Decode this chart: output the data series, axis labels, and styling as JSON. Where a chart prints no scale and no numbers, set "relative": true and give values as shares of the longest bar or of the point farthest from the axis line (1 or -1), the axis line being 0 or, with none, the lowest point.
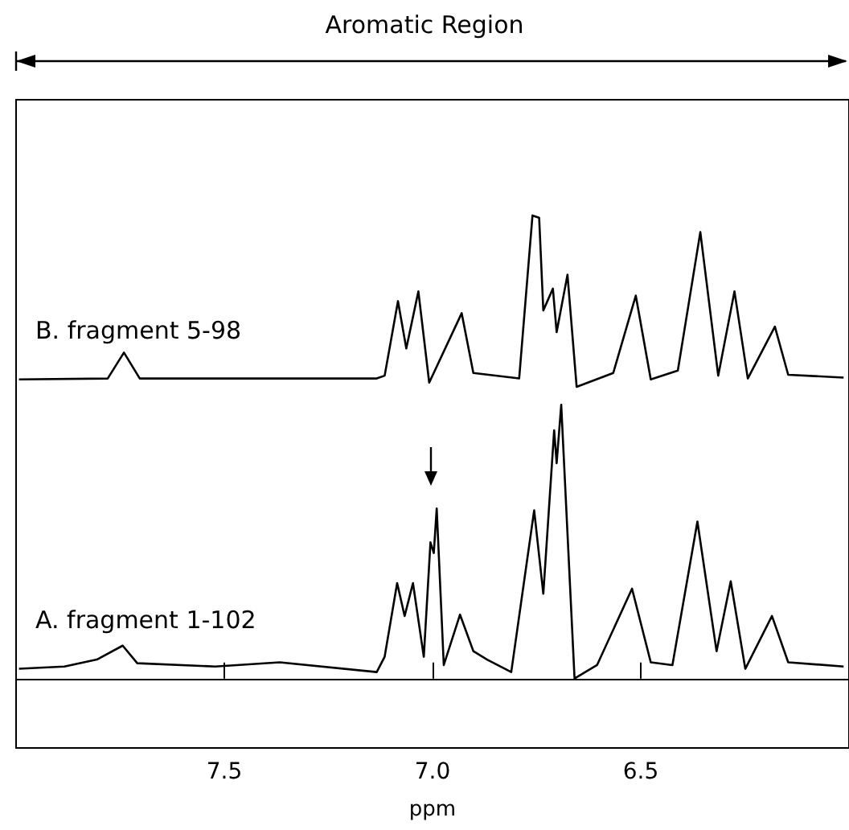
{
  "chart_data": {
    "type": "line",
    "relative": true,
    "xlabel": "ppm",
    "annotations": [
      "Aromatic Region"
    ],
    "xlim": [
      8.0,
      6.0
    ],
    "xticks": [
      7.5,
      {
        "value": 7.0,
        "label": "7.0"
      },
      6.5
    ],
    "grid": false,
    "legend": false,
    "marker": "none",
    "line_style": "solid",
    "series": [
      {
        "name": "B. fragment 5-98",
        "color": "#000000",
        "x": [
          7.993,
          7.78,
          7.741,
          7.703,
          7.134,
          7.115,
          7.083,
          7.063,
          7.034,
          7.008,
          6.93,
          6.902,
          6.792,
          6.76,
          6.744,
          6.734,
          6.711,
          6.702,
          6.676,
          6.654,
          6.566,
          6.512,
          6.476,
          6.411,
          6.357,
          6.314,
          6.275,
          6.243,
          6.178,
          6.146,
          6.013
        ],
        "values": [
          0.646,
          0.648,
          0.704,
          0.648,
          0.648,
          0.654,
          0.815,
          0.713,
          0.836,
          0.639,
          0.789,
          0.66,
          0.648,
          1.0,
          0.995,
          0.795,
          0.842,
          0.748,
          0.872,
          0.63,
          0.66,
          0.827,
          0.646,
          0.665,
          0.964,
          0.654,
          0.836,
          0.648,
          0.76,
          0.656,
          0.65
        ]
      },
      {
        "name": "A. fragment 1-102",
        "color": "#000000",
        "x": [
          7.993,
          7.884,
          7.806,
          7.744,
          7.709,
          7.522,
          7.367,
          7.134,
          7.115,
          7.085,
          7.067,
          7.047,
          7.021,
          7.005,
          6.997,
          6.99,
          6.973,
          6.934,
          6.902,
          6.869,
          6.811,
          6.756,
          6.734,
          6.708,
          6.702,
          6.691,
          6.659,
          6.605,
          6.521,
          6.476,
          6.424,
          6.364,
          6.318,
          6.284,
          6.249,
          6.185,
          6.146,
          6.013
        ],
        "values": [
          0.021,
          0.026,
          0.041,
          0.071,
          0.033,
          0.026,
          0.035,
          0.014,
          0.047,
          0.206,
          0.135,
          0.206,
          0.047,
          0.294,
          0.271,
          0.367,
          0.029,
          0.138,
          0.059,
          0.041,
          0.014,
          0.363,
          0.183,
          0.536,
          0.465,
          0.591,
          0,
          0.029,
          0.194,
          0.035,
          0.029,
          0.339,
          0.059,
          0.21,
          0.021,
          0.135,
          0.035,
          0.026
        ]
      }
    ]
  }
}
